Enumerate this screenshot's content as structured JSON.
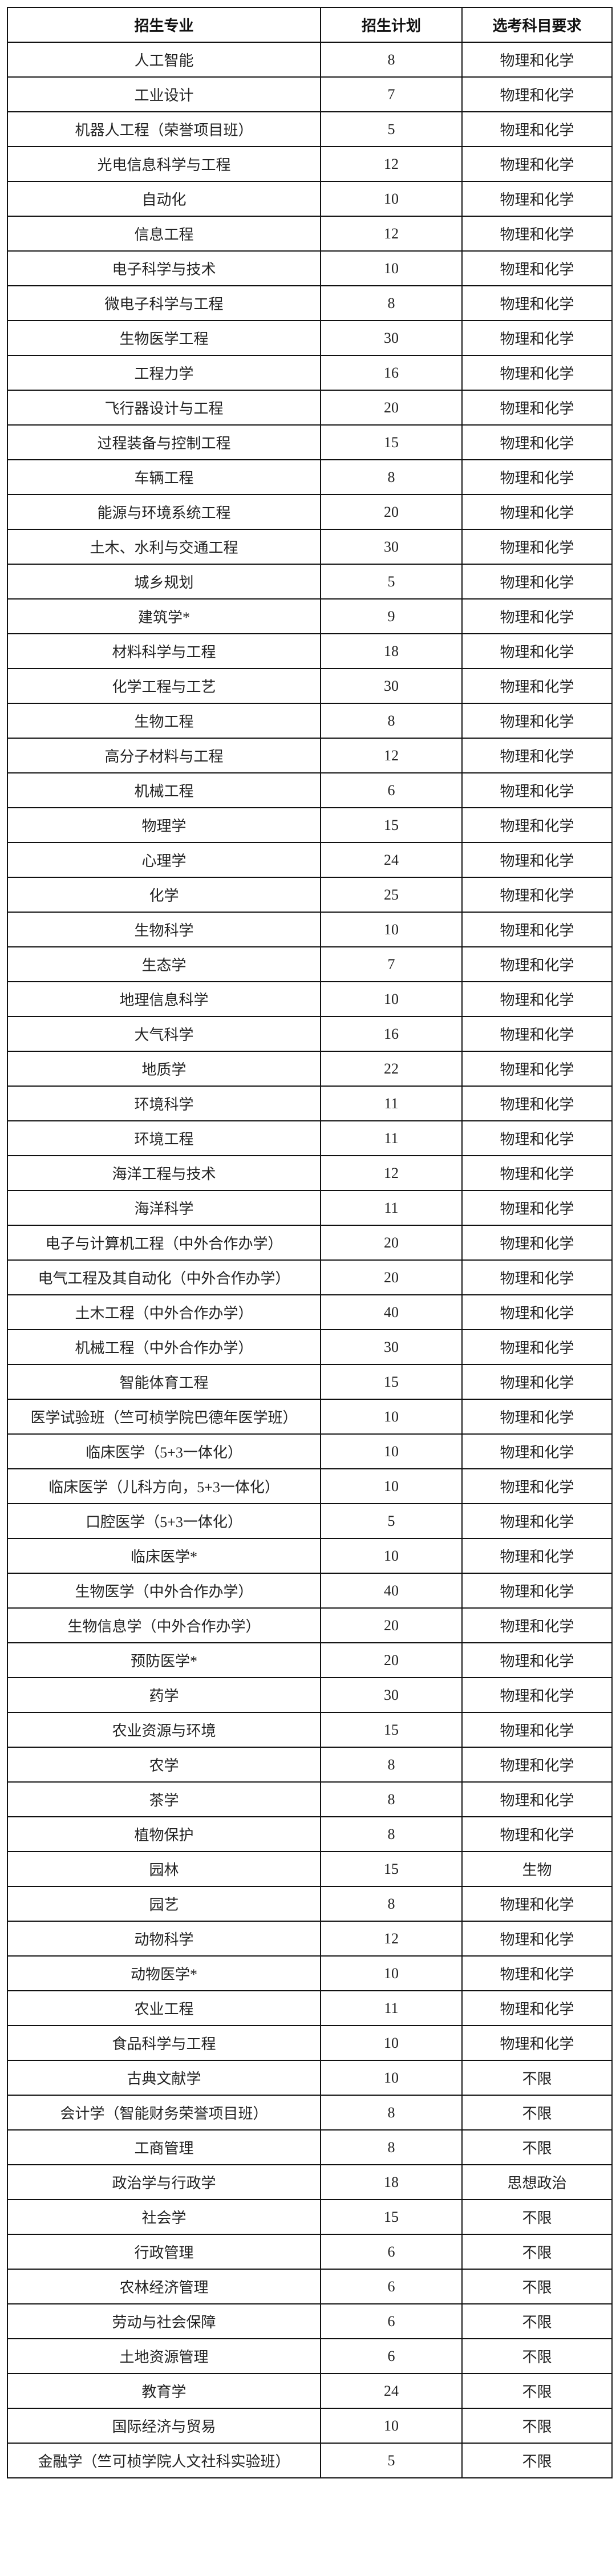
{
  "table": {
    "headers": [
      "招生专业",
      "招生计划",
      "选考科目要求"
    ],
    "rows": [
      [
        "人工智能",
        "8",
        "物理和化学"
      ],
      [
        "工业设计",
        "7",
        "物理和化学"
      ],
      [
        "机器人工程（荣誉项目班）",
        "5",
        "物理和化学"
      ],
      [
        "光电信息科学与工程",
        "12",
        "物理和化学"
      ],
      [
        "自动化",
        "10",
        "物理和化学"
      ],
      [
        "信息工程",
        "12",
        "物理和化学"
      ],
      [
        "电子科学与技术",
        "10",
        "物理和化学"
      ],
      [
        "微电子科学与工程",
        "8",
        "物理和化学"
      ],
      [
        "生物医学工程",
        "30",
        "物理和化学"
      ],
      [
        "工程力学",
        "16",
        "物理和化学"
      ],
      [
        "飞行器设计与工程",
        "20",
        "物理和化学"
      ],
      [
        "过程装备与控制工程",
        "15",
        "物理和化学"
      ],
      [
        "车辆工程",
        "8",
        "物理和化学"
      ],
      [
        "能源与环境系统工程",
        "20",
        "物理和化学"
      ],
      [
        "土木、水利与交通工程",
        "30",
        "物理和化学"
      ],
      [
        "城乡规划",
        "5",
        "物理和化学"
      ],
      [
        "建筑学*",
        "9",
        "物理和化学"
      ],
      [
        "材料科学与工程",
        "18",
        "物理和化学"
      ],
      [
        "化学工程与工艺",
        "30",
        "物理和化学"
      ],
      [
        "生物工程",
        "8",
        "物理和化学"
      ],
      [
        "高分子材料与工程",
        "12",
        "物理和化学"
      ],
      [
        "机械工程",
        "6",
        "物理和化学"
      ],
      [
        "物理学",
        "15",
        "物理和化学"
      ],
      [
        "心理学",
        "24",
        "物理和化学"
      ],
      [
        "化学",
        "25",
        "物理和化学"
      ],
      [
        "生物科学",
        "10",
        "物理和化学"
      ],
      [
        "生态学",
        "7",
        "物理和化学"
      ],
      [
        "地理信息科学",
        "10",
        "物理和化学"
      ],
      [
        "大气科学",
        "16",
        "物理和化学"
      ],
      [
        "地质学",
        "22",
        "物理和化学"
      ],
      [
        "环境科学",
        "11",
        "物理和化学"
      ],
      [
        "环境工程",
        "11",
        "物理和化学"
      ],
      [
        "海洋工程与技术",
        "12",
        "物理和化学"
      ],
      [
        "海洋科学",
        "11",
        "物理和化学"
      ],
      [
        "电子与计算机工程（中外合作办学）",
        "20",
        "物理和化学"
      ],
      [
        "电气工程及其自动化（中外合作办学）",
        "20",
        "物理和化学"
      ],
      [
        "土木工程（中外合作办学）",
        "40",
        "物理和化学"
      ],
      [
        "机械工程（中外合作办学）",
        "30",
        "物理和化学"
      ],
      [
        "智能体育工程",
        "15",
        "物理和化学"
      ],
      [
        "医学试验班（竺可桢学院巴德年医学班）",
        "10",
        "物理和化学"
      ],
      [
        "临床医学（5+3一体化）",
        "10",
        "物理和化学"
      ],
      [
        "临床医学（儿科方向，5+3一体化）",
        "10",
        "物理和化学"
      ],
      [
        "口腔医学（5+3一体化）",
        "5",
        "物理和化学"
      ],
      [
        "临床医学*",
        "10",
        "物理和化学"
      ],
      [
        "生物医学（中外合作办学）",
        "40",
        "物理和化学"
      ],
      [
        "生物信息学（中外合作办学）",
        "20",
        "物理和化学"
      ],
      [
        "预防医学*",
        "20",
        "物理和化学"
      ],
      [
        "药学",
        "30",
        "物理和化学"
      ],
      [
        "农业资源与环境",
        "15",
        "物理和化学"
      ],
      [
        "农学",
        "8",
        "物理和化学"
      ],
      [
        "茶学",
        "8",
        "物理和化学"
      ],
      [
        "植物保护",
        "8",
        "物理和化学"
      ],
      [
        "园林",
        "15",
        "生物"
      ],
      [
        "园艺",
        "8",
        "物理和化学"
      ],
      [
        "动物科学",
        "12",
        "物理和化学"
      ],
      [
        "动物医学*",
        "10",
        "物理和化学"
      ],
      [
        "农业工程",
        "11",
        "物理和化学"
      ],
      [
        "食品科学与工程",
        "10",
        "物理和化学"
      ],
      [
        "古典文献学",
        "10",
        "不限"
      ],
      [
        "会计学（智能财务荣誉项目班）",
        "8",
        "不限"
      ],
      [
        "工商管理",
        "8",
        "不限"
      ],
      [
        "政治学与行政学",
        "18",
        "思想政治"
      ],
      [
        "社会学",
        "15",
        "不限"
      ],
      [
        "行政管理",
        "6",
        "不限"
      ],
      [
        "农林经济管理",
        "6",
        "不限"
      ],
      [
        "劳动与社会保障",
        "6",
        "不限"
      ],
      [
        "土地资源管理",
        "6",
        "不限"
      ],
      [
        "教育学",
        "24",
        "不限"
      ],
      [
        "国际经济与贸易",
        "10",
        "不限"
      ],
      [
        "金融学（竺可桢学院人文社科实验班）",
        "5",
        "不限"
      ]
    ]
  }
}
